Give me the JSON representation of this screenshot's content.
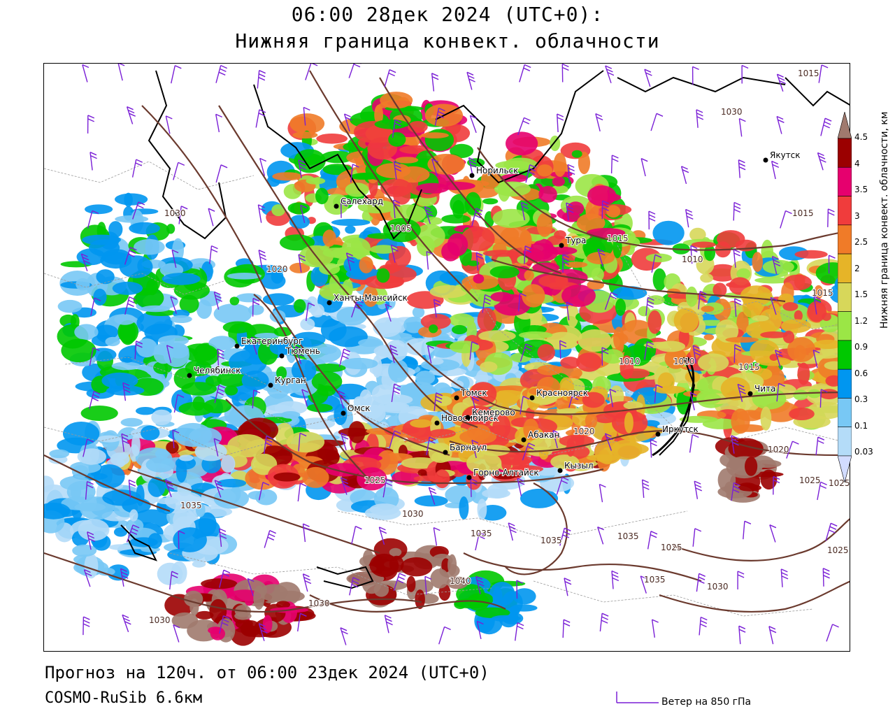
{
  "header": {
    "title_line1": "06:00 28дек 2024 (UTC+0):",
    "title_line2": "Нижняя граница конвект. облачности"
  },
  "map": {
    "cities": [
      {
        "name": "Якутск",
        "lon": 129.7,
        "lat": 62.0
      },
      {
        "name": "Норильск",
        "lon": 88.2,
        "lat": 69.3
      },
      {
        "name": "Салехард",
        "lon": 66.6,
        "lat": 66.5
      },
      {
        "name": "Тура",
        "lon": 100.2,
        "lat": 64.3
      },
      {
        "name": "Ханты-Мансийск",
        "lon": 69.0,
        "lat": 61.0
      },
      {
        "name": "Екатеринбург",
        "lon": 60.6,
        "lat": 56.8
      },
      {
        "name": "Тюмень",
        "lon": 65.5,
        "lat": 57.2
      },
      {
        "name": "Челябинск",
        "lon": 61.4,
        "lat": 55.2
      },
      {
        "name": "Курган",
        "lon": 65.3,
        "lat": 55.4
      },
      {
        "name": "Омск",
        "lon": 73.4,
        "lat": 55.0
      },
      {
        "name": "Новосибирск",
        "lon": 82.9,
        "lat": 55.0
      },
      {
        "name": "Томск",
        "lon": 85.0,
        "lat": 56.5
      },
      {
        "name": "Кемерово",
        "lon": 86.1,
        "lat": 55.4
      },
      {
        "name": "Красноярск",
        "lon": 92.9,
        "lat": 56.0
      },
      {
        "name": "Барнаул",
        "lon": 83.8,
        "lat": 53.3
      },
      {
        "name": "Абакан",
        "lon": 91.4,
        "lat": 53.7
      },
      {
        "name": "Горно-Алтайск",
        "lon": 85.9,
        "lat": 51.9
      },
      {
        "name": "Кызыл",
        "lon": 94.4,
        "lat": 51.7
      },
      {
        "name": "Иркутск",
        "lon": 104.3,
        "lat": 52.3
      },
      {
        "name": "Чита",
        "lon": 113.5,
        "lat": 52.0
      }
    ],
    "isobar_labels": [
      "1015",
      "1030",
      "1015",
      "1030",
      "1020",
      "1005",
      "1015",
      "1010",
      "1015",
      "1010",
      "1010",
      "1015",
      "1020",
      "1020",
      "1025",
      "1025",
      "1030",
      "1035",
      "1035",
      "1035",
      "1025",
      "1035",
      "1030",
      "1040",
      "1030",
      "1030",
      "1035",
      "1025",
      "1025"
    ],
    "colors": {
      "isobar": "#6b3a2e",
      "coast": "#000000",
      "wind": "#7a1fd6",
      "boundary": "#9a9a9a"
    }
  },
  "legend": {
    "title": "Нижняя граница конвект. облачности, км",
    "ticks": [
      "4.5",
      "4",
      "3.5",
      "3",
      "2.5",
      "2",
      "1.5",
      "1.2",
      "0.9",
      "0.6",
      "0.3",
      "0.1",
      "0.03"
    ],
    "colors": [
      "#a07a6e",
      "#9b0000",
      "#e6006e",
      "#f03c3c",
      "#f07b28",
      "#e6b428",
      "#d7d75a",
      "#9be646",
      "#00c800",
      "#0096f0",
      "#78c8f5",
      "#b4dcf8",
      "#d2dcff"
    ]
  },
  "footer": {
    "forecast": "Прогноз на 120ч. от 06:00 23дек 2024 (UTC+0)",
    "model": "COSMO-RuSib 6.6км",
    "wind_legend": "Ветер на 850 гПа"
  }
}
